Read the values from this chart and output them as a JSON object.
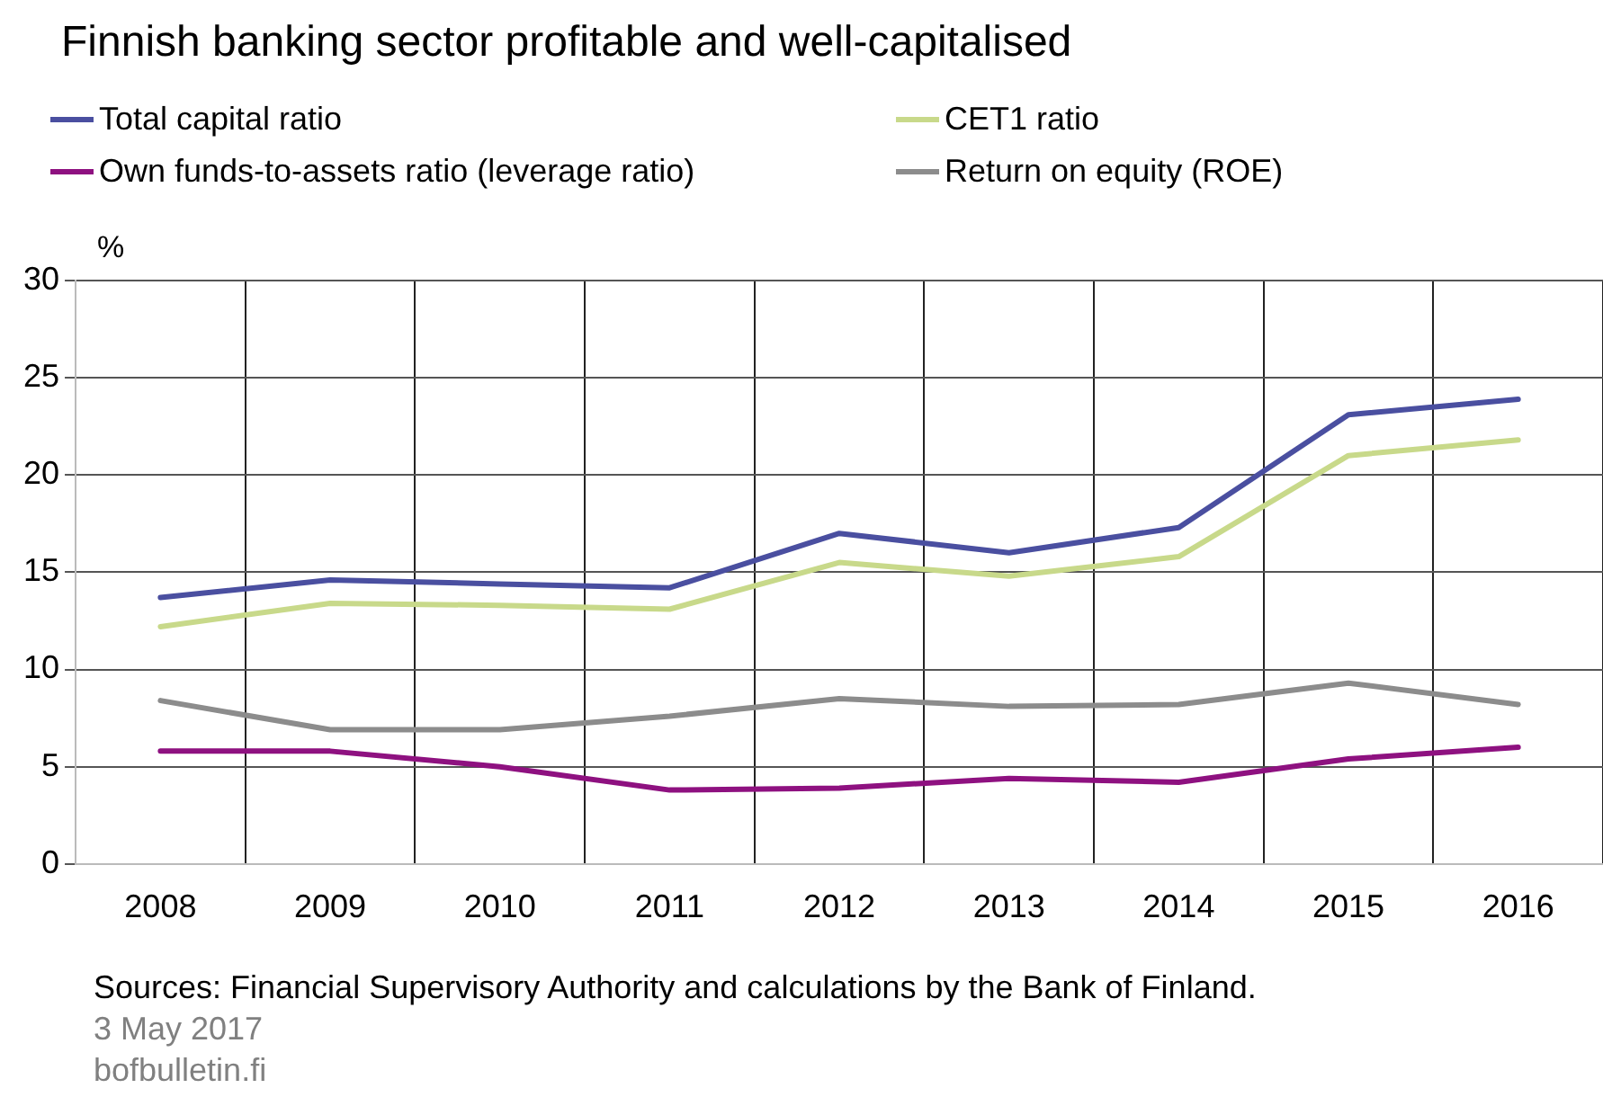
{
  "chart_data": {
    "type": "line",
    "title": "Finnish banking sector profitable and well-capitalised",
    "ylabel": "%",
    "categories": [
      "2008",
      "2009",
      "2010",
      "2011",
      "2012",
      "2013",
      "2014",
      "2015",
      "2016"
    ],
    "series": [
      {
        "name": "Total capital ratio",
        "color": "#4a4fa0",
        "values": [
          13.7,
          14.6,
          14.4,
          14.2,
          17.0,
          16.0,
          17.3,
          23.1,
          23.9
        ]
      },
      {
        "name": "CET1 ratio",
        "color": "#c8d98a",
        "values": [
          12.2,
          13.4,
          13.3,
          13.1,
          15.5,
          14.8,
          15.8,
          21.0,
          21.8
        ]
      },
      {
        "name": "Own funds-to-assets ratio (leverage ratio)",
        "color": "#8e1180",
        "values": [
          5.8,
          5.8,
          5.0,
          3.8,
          3.9,
          4.4,
          4.2,
          5.4,
          6.0
        ]
      },
      {
        "name": "Return on equity (ROE)",
        "color": "#8c8c8c",
        "values": [
          8.4,
          6.9,
          6.9,
          7.6,
          8.5,
          8.1,
          8.2,
          9.3,
          8.2
        ]
      }
    ],
    "ylim": [
      0,
      30
    ],
    "yticks": [
      0,
      5,
      10,
      15,
      20,
      25,
      30
    ],
    "grid": true,
    "legend": "top",
    "marker": "none",
    "line_style": "solid",
    "annotations": [
      "Sources: Financial Supervisory Authority and calculations by the Bank of Finland.",
      "3 May 2017",
      "bofbulletin.fi"
    ]
  }
}
